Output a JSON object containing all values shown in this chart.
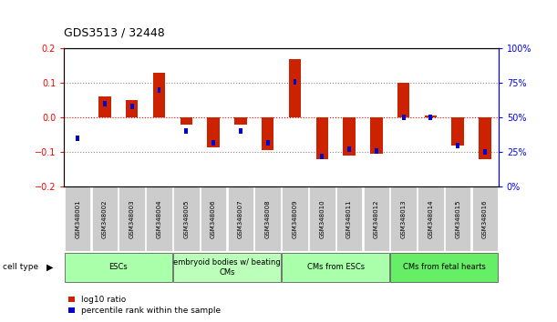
{
  "title": "GDS3513 / 32448",
  "samples": [
    "GSM348001",
    "GSM348002",
    "GSM348003",
    "GSM348004",
    "GSM348005",
    "GSM348006",
    "GSM348007",
    "GSM348008",
    "GSM348009",
    "GSM348010",
    "GSM348011",
    "GSM348012",
    "GSM348013",
    "GSM348014",
    "GSM348015",
    "GSM348016"
  ],
  "log10_ratio": [
    0.0,
    0.06,
    0.05,
    0.13,
    -0.02,
    -0.085,
    -0.02,
    -0.095,
    0.17,
    -0.12,
    -0.11,
    -0.105,
    0.1,
    0.005,
    -0.08,
    -0.12
  ],
  "percentile_rank": [
    35,
    60,
    58,
    70,
    40,
    32,
    40,
    32,
    76,
    22,
    27,
    26,
    50,
    50,
    30,
    25
  ],
  "cell_type_groups": [
    {
      "label": "ESCs",
      "start": 0,
      "end": 3,
      "color": "#AAFFAA"
    },
    {
      "label": "embryoid bodies w/ beating\nCMs",
      "start": 4,
      "end": 7,
      "color": "#BBFFBB"
    },
    {
      "label": "CMs from ESCs",
      "start": 8,
      "end": 11,
      "color": "#AAFFAA"
    },
    {
      "label": "CMs from fetal hearts",
      "start": 12,
      "end": 15,
      "color": "#66EE66"
    }
  ],
  "bar_color_red": "#CC2200",
  "bar_color_blue": "#0000CC",
  "ylim_left": [
    -0.2,
    0.2
  ],
  "ylim_right": [
    0,
    100
  ],
  "yticks_left": [
    -0.2,
    -0.1,
    0,
    0.1,
    0.2
  ],
  "yticks_right": [
    0,
    25,
    50,
    75,
    100
  ],
  "legend_red_label": "log10 ratio",
  "legend_blue_label": "percentile rank within the sample"
}
